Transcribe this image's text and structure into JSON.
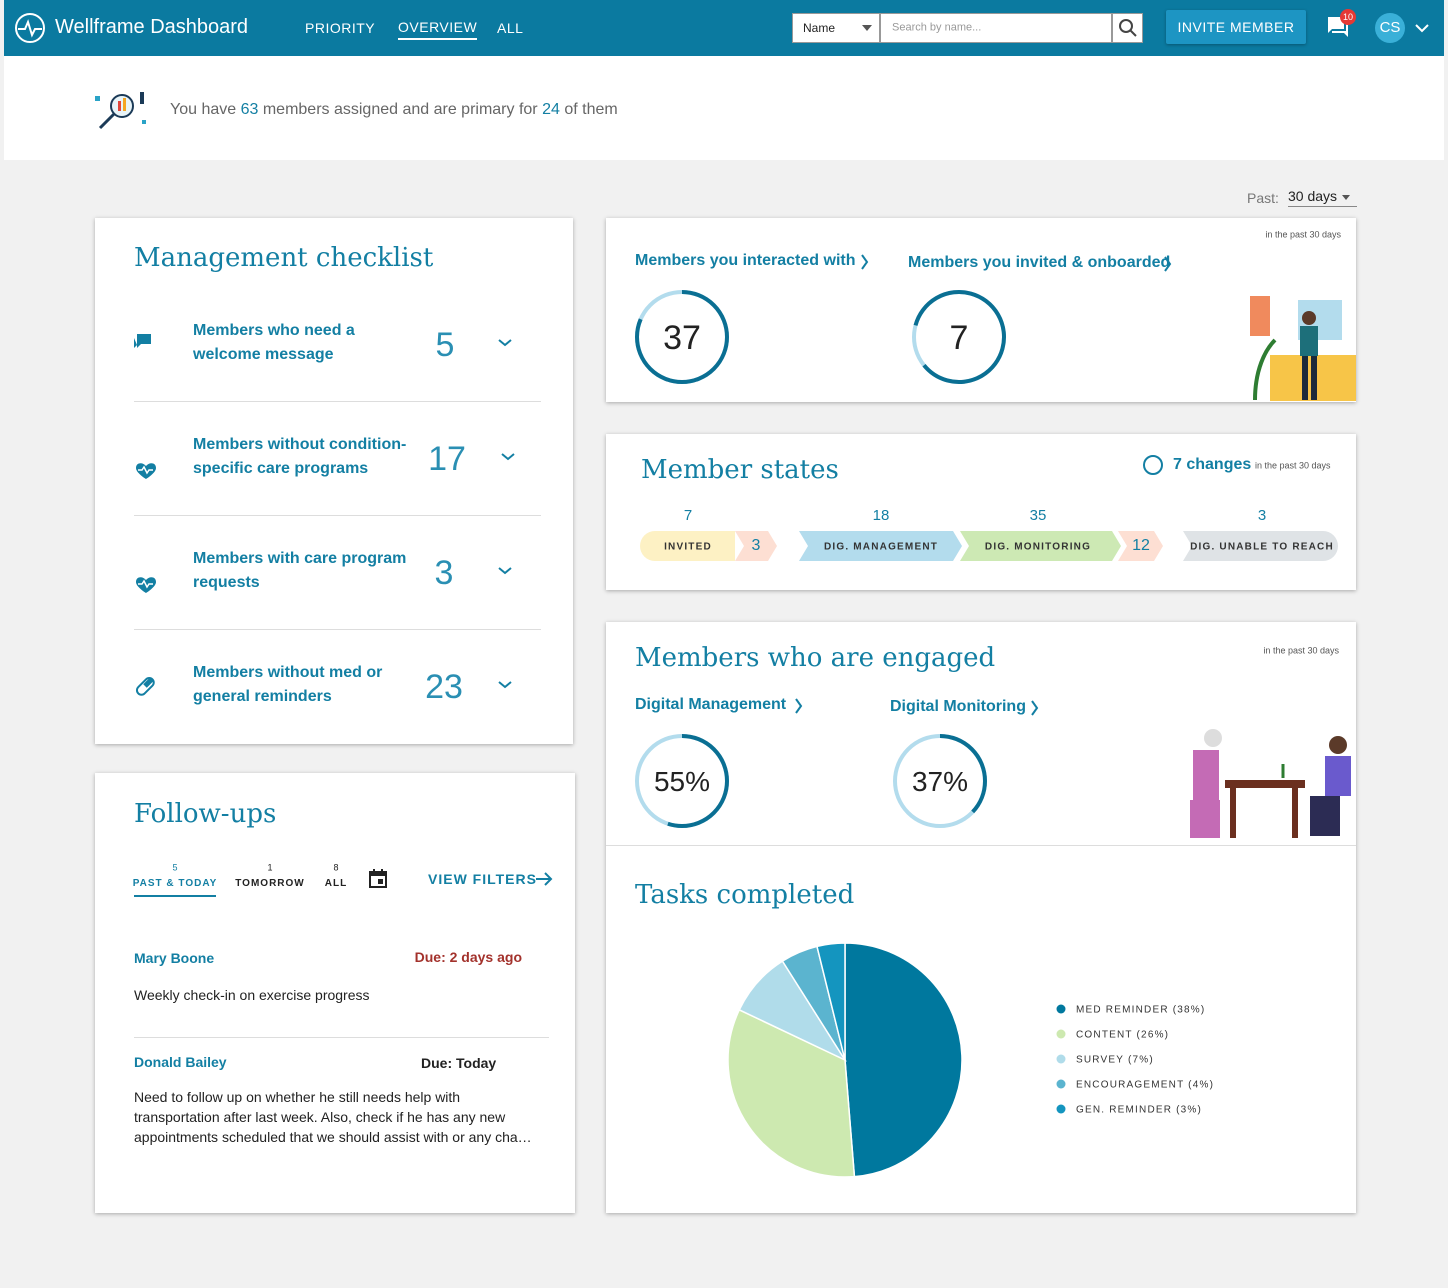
{
  "header": {
    "title": "Wellframe Dashboard",
    "nav": [
      "PRIORITY",
      "OVERVIEW",
      "ALL"
    ],
    "search_field": "Name",
    "search_placeholder": "Search by name...",
    "invite_button": "INVITE MEMBER",
    "notifications": 10,
    "avatar": "CS"
  },
  "summary": {
    "prefix": "You have",
    "members": 63,
    "middle": "members assigned and are primary for",
    "primary": 24,
    "suffix": "of them"
  },
  "period": {
    "label": "Past:",
    "value": "30 days"
  },
  "checklist": {
    "title": "Management checklist",
    "items": [
      {
        "label": "Members who need a welcome message",
        "count": 5
      },
      {
        "label": "Members without condition-specific care programs",
        "count": 17
      },
      {
        "label": "Members with care program requests",
        "count": 3
      },
      {
        "label": "Members without med or general reminders",
        "count": 23
      }
    ]
  },
  "followups": {
    "title": "Follow-ups",
    "tabs": [
      {
        "count": 5,
        "label": "PAST & TODAY"
      },
      {
        "count": 1,
        "label": "TOMORROW"
      },
      {
        "count": 8,
        "label": "ALL"
      }
    ],
    "view_filters": "VIEW FILTERS",
    "items": [
      {
        "name": "Mary Boone",
        "due": "Due: 2 days ago",
        "note": "Weekly check-in on exercise progress"
      },
      {
        "name": "Donald Bailey",
        "due": "Due: Today",
        "note": "Need to follow up on whether he still needs help with transportation after last week. Also, check if he has any new appointments scheduled that we should assist with or any cha…"
      }
    ]
  },
  "interactions": {
    "note": "in the past 30 days",
    "items": [
      {
        "label": "Members you interacted with",
        "value": 37
      },
      {
        "label": "Members you invited & onboarded",
        "value": 7
      }
    ]
  },
  "member_states": {
    "title": "Member states",
    "changes": "7 changes",
    "note": "in the past 30 days",
    "stages": [
      {
        "label": "INVITED",
        "count": 7
      },
      {
        "label": "DIG. MANAGEMENT",
        "count": 18
      },
      {
        "label": "DIG. MONITORING",
        "count": 35
      },
      {
        "label": "DIG. UNABLE TO REACH",
        "count": 3
      }
    ],
    "transitions": [
      3,
      12
    ]
  },
  "engaged": {
    "title": "Members who are engaged",
    "note": "in the past 30 days",
    "items": [
      {
        "label": "Digital Management",
        "value": 55,
        "value_label": "55%"
      },
      {
        "label": "Digital Monitoring",
        "value": 37,
        "value_label": "37%"
      }
    ]
  },
  "chart_data": {
    "type": "pie",
    "title": "Tasks completed",
    "categories": [
      "MED REMINDER (38%)",
      "CONTENT (26%)",
      "SURVEY (7%)",
      "ENCOURAGEMENT (4%)",
      "GEN. REMINDER (3%)"
    ],
    "values": [
      38,
      26,
      7,
      4,
      3
    ],
    "colors": [
      "#00789e",
      "#cde9b0",
      "#b0dcea",
      "#5bb4cf",
      "#1495bf"
    ]
  }
}
